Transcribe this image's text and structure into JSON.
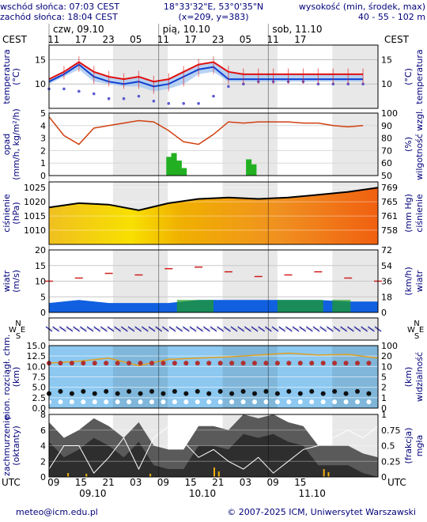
{
  "header": {
    "sunrise": "wschód słońca: 07:03 CEST",
    "sunset": "zachód słońca: 18:04 CEST",
    "coords": "18°33'32\"E, 53°0'35\"N",
    "grid": "(x=209,  y=383)",
    "elev_title": "wysokość (min, środek, max)",
    "elev_values": "40 - 55 - 102 m"
  },
  "top_axis": {
    "tz": "CEST",
    "days": [
      "czw, 09.10",
      "pią, 10.10",
      "sob, 11.10"
    ],
    "hours": [
      "11",
      "17",
      "23",
      "05",
      "11",
      "17",
      "23",
      "05",
      "11",
      "17"
    ]
  },
  "bottom_axis": {
    "tz": "UTC",
    "hours": [
      "09",
      "15",
      "21",
      "03",
      "09",
      "15",
      "21",
      "03",
      "09",
      "15"
    ],
    "dates": [
      "09.10",
      "10.10",
      "11.10"
    ]
  },
  "panels": {
    "temperature": {
      "left_label": [
        "temperatura",
        "(°C)"
      ],
      "right_label": [
        "(°C)",
        "temperatura"
      ],
      "ticks": [
        "15",
        "10"
      ]
    },
    "precip": {
      "left_label": [
        "opad",
        "(mm/h, kg/m²/h)"
      ],
      "right_label": [
        "(%)",
        "wilgotność wzgl."
      ],
      "left_ticks": [
        "5",
        "4",
        "3",
        "2",
        "1",
        "0"
      ],
      "right_ticks": [
        "100",
        "90",
        "80",
        "70",
        "60",
        "50"
      ]
    },
    "pressure": {
      "left_label": [
        "ciśnienie",
        "(hPa)"
      ],
      "right_label": [
        "(mm Hg)",
        "ciśnienie"
      ],
      "left_ticks": [
        "1025",
        "1020",
        "1015",
        "1010"
      ],
      "right_ticks": [
        "769",
        "765",
        "761",
        "758"
      ]
    },
    "wind": {
      "left_label": [
        "wiatr",
        "(m/s)"
      ],
      "right_label": [
        "(km/h)",
        "wiatr"
      ],
      "left_ticks": [
        "20",
        "15",
        "10",
        "5",
        "0"
      ],
      "right_ticks": [
        "72",
        "54",
        "36",
        "18",
        "0"
      ]
    },
    "direction": {
      "compass": [
        "N",
        "W",
        "E",
        "S"
      ]
    },
    "visibility": {
      "left_label": [
        "pion. rozciągł. chm.",
        "(km)"
      ],
      "right_label": [
        "(km)",
        "widzialność"
      ],
      "left_ticks": [
        "15.0",
        "12.5",
        "10.0",
        "7.5",
        "5.0",
        "2.5",
        "0.0"
      ],
      "right_ticks": [
        "100",
        "20",
        "10",
        "5",
        "2",
        "1",
        "0"
      ]
    },
    "clouds": {
      "left_label": [
        "zachmurzenie",
        "(oktanty)"
      ],
      "right_label": [
        "(frakcja)",
        "mgła"
      ],
      "left_ticks": [
        "8",
        "6",
        "4",
        "2",
        "0"
      ],
      "right_ticks": [
        "1",
        "0.75",
        "0.5",
        "0.25",
        "0"
      ]
    }
  },
  "footer": {
    "email": "meteo@icm.edu.pl",
    "copyright": "© 2007-2025 ICM, Uniwersytet Warszawski"
  },
  "colors": {
    "text": "#00007a",
    "temp_line": "#e01010",
    "temp_mean": "#1040d0",
    "temp_band": "#a8c8f0",
    "rh_line": "#d04010",
    "rain": "#22b022",
    "pressure_line": "#000000",
    "wind_fill": "#1060e0",
    "gust": "#d02020",
    "vis_bg": "#8cc8f0"
  },
  "chart_data": [
    {
      "type": "line",
      "name": "temperatura",
      "x_hours_from_start": [
        0,
        3,
        6,
        9,
        12,
        15,
        18,
        21,
        24,
        27,
        30,
        33,
        36,
        39,
        42,
        45,
        48,
        51,
        54,
        57,
        60,
        63
      ],
      "series": [
        {
          "name": "max",
          "values": [
            11,
            12.5,
            14.5,
            12.5,
            11.5,
            11,
            11.5,
            10.5,
            11,
            12.5,
            14,
            14.5,
            12.5,
            12,
            12,
            12,
            12,
            12,
            12,
            12,
            12,
            12
          ]
        },
        {
          "name": "środek",
          "values": [
            10.5,
            12,
            14,
            11.5,
            10.5,
            10,
            10.5,
            9.5,
            10,
            11.5,
            13,
            13.5,
            11,
            11,
            11,
            11,
            11,
            11,
            11,
            11,
            11,
            11
          ]
        },
        {
          "name": "min",
          "values": [
            10,
            11.5,
            13,
            10.5,
            10,
            9.5,
            9.5,
            8.5,
            9,
            10,
            12,
            12.5,
            10.5,
            10.5,
            10.5,
            10.5,
            10.5,
            10.5,
            10.5,
            10.5,
            10.5,
            10.5
          ]
        },
        {
          "name": "punkt rosy",
          "values": [
            9,
            9,
            8.5,
            8,
            7,
            7,
            7.5,
            6.5,
            6,
            6,
            6,
            7.5,
            9.5,
            10,
            10.5,
            10.5,
            10.5,
            10.5,
            10,
            10,
            10,
            10
          ]
        }
      ],
      "ylim": [
        5,
        18
      ]
    },
    {
      "type": "line",
      "name": "wilgotność wzgl.",
      "x_hours_from_start": [
        0,
        3,
        6,
        9,
        12,
        15,
        18,
        21,
        24,
        27,
        30,
        33,
        36,
        39,
        42,
        45,
        48,
        51,
        54,
        57,
        60,
        63
      ],
      "values": [
        97,
        82,
        75,
        88,
        90,
        92,
        94,
        93,
        86,
        77,
        75,
        83,
        93,
        92,
        93,
        93,
        93,
        92,
        92,
        90,
        89,
        90
      ],
      "ylim": [
        50,
        100
      ]
    },
    {
      "type": "bar",
      "name": "opad",
      "x_hours_from_start": [
        24,
        25,
        26,
        27,
        40,
        41
      ],
      "values": [
        1.5,
        1.8,
        1.2,
        0.6,
        1.3,
        0.9
      ],
      "ylim": [
        0,
        5
      ]
    },
    {
      "type": "line",
      "name": "ciśnienie",
      "x_hours_from_start": [
        0,
        6,
        12,
        18,
        24,
        30,
        36,
        42,
        48,
        54,
        60,
        66
      ],
      "values": [
        1018,
        1019.5,
        1019,
        1017,
        1019.5,
        1021,
        1021.5,
        1021,
        1021.5,
        1022.5,
        1023.5,
        1025
      ],
      "ylim": [
        1005,
        1027
      ]
    },
    {
      "type": "area",
      "name": "wiatr",
      "x_hours_from_start": [
        0,
        6,
        12,
        18,
        24,
        30,
        36,
        42,
        48,
        54,
        60,
        66
      ],
      "series": [
        {
          "name": "średni",
          "values": [
            3,
            4,
            3,
            3,
            3,
            4,
            4,
            4,
            4,
            4,
            3.5,
            3.5
          ]
        },
        {
          "name": "porywy",
          "values": [
            10,
            11,
            12.5,
            12,
            14,
            14.5,
            13,
            11.5,
            12,
            13,
            11,
            10
          ]
        }
      ],
      "ylim": [
        0,
        20
      ]
    },
    {
      "type": "scatter",
      "name": "widzialność i chmury",
      "x_hours_from_start": [
        0,
        6,
        12,
        18,
        24,
        30,
        36,
        42,
        48,
        54,
        60,
        66
      ],
      "series": [
        {
          "name": "widzialność",
          "values": [
            72,
            75,
            80,
            68,
            78,
            80,
            82,
            85,
            88,
            85,
            86,
            80
          ]
        },
        {
          "name": "pion. rozciągł. chm.",
          "values": [
            2.5,
            3.5,
            3,
            2.5,
            3,
            2,
            2.5,
            2,
            3,
            2.5,
            2,
            2
          ]
        }
      ],
      "ylim": [
        0,
        15
      ]
    },
    {
      "type": "area",
      "name": "zachmurzenie",
      "x_hours_from_start": [
        0,
        3,
        6,
        9,
        12,
        15,
        18,
        21,
        24,
        27,
        30,
        33,
        36,
        39,
        42,
        45,
        48,
        51,
        54,
        57,
        60,
        63,
        66
      ],
      "values": [
        7,
        5,
        6,
        7.5,
        6.5,
        5,
        7,
        4,
        3.5,
        3.5,
        6.5,
        6.5,
        6,
        8,
        7.5,
        8,
        7,
        6.5,
        4,
        4,
        4,
        3,
        2.5
      ],
      "ylim": [
        0,
        8
      ]
    }
  ]
}
